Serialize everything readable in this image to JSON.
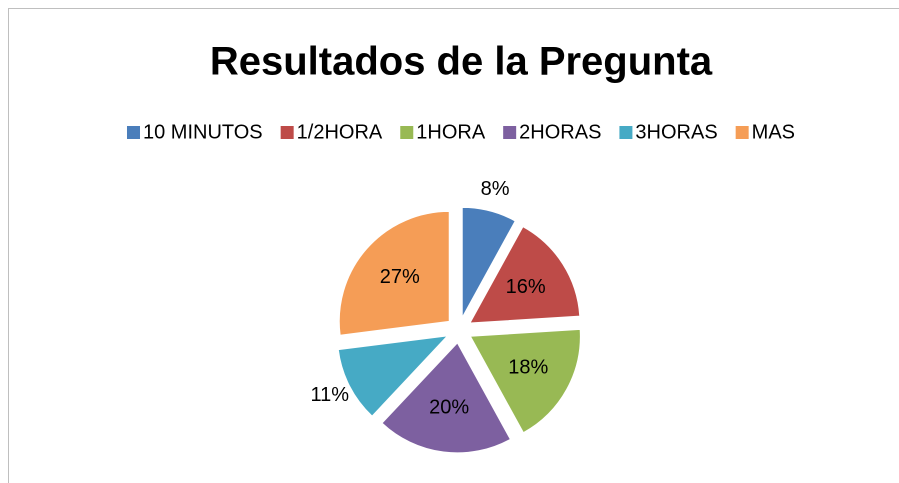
{
  "chart_data": {
    "type": "pie",
    "title": "Resultados de la Pregunta",
    "categories": [
      "10 MINUTOS",
      "1/2HORA",
      "1HORA",
      "2HORAS",
      "3HORAS",
      "MAS"
    ],
    "values": [
      8,
      16,
      18,
      20,
      11,
      27
    ],
    "value_labels": [
      "8%",
      "16%",
      "18%",
      "20%",
      "11%",
      "27%"
    ],
    "colors": [
      "#4a7ebb",
      "#be4b48",
      "#98b954",
      "#7d60a0",
      "#46aac5",
      "#f59d56"
    ],
    "legend": "top",
    "exploded": true
  }
}
